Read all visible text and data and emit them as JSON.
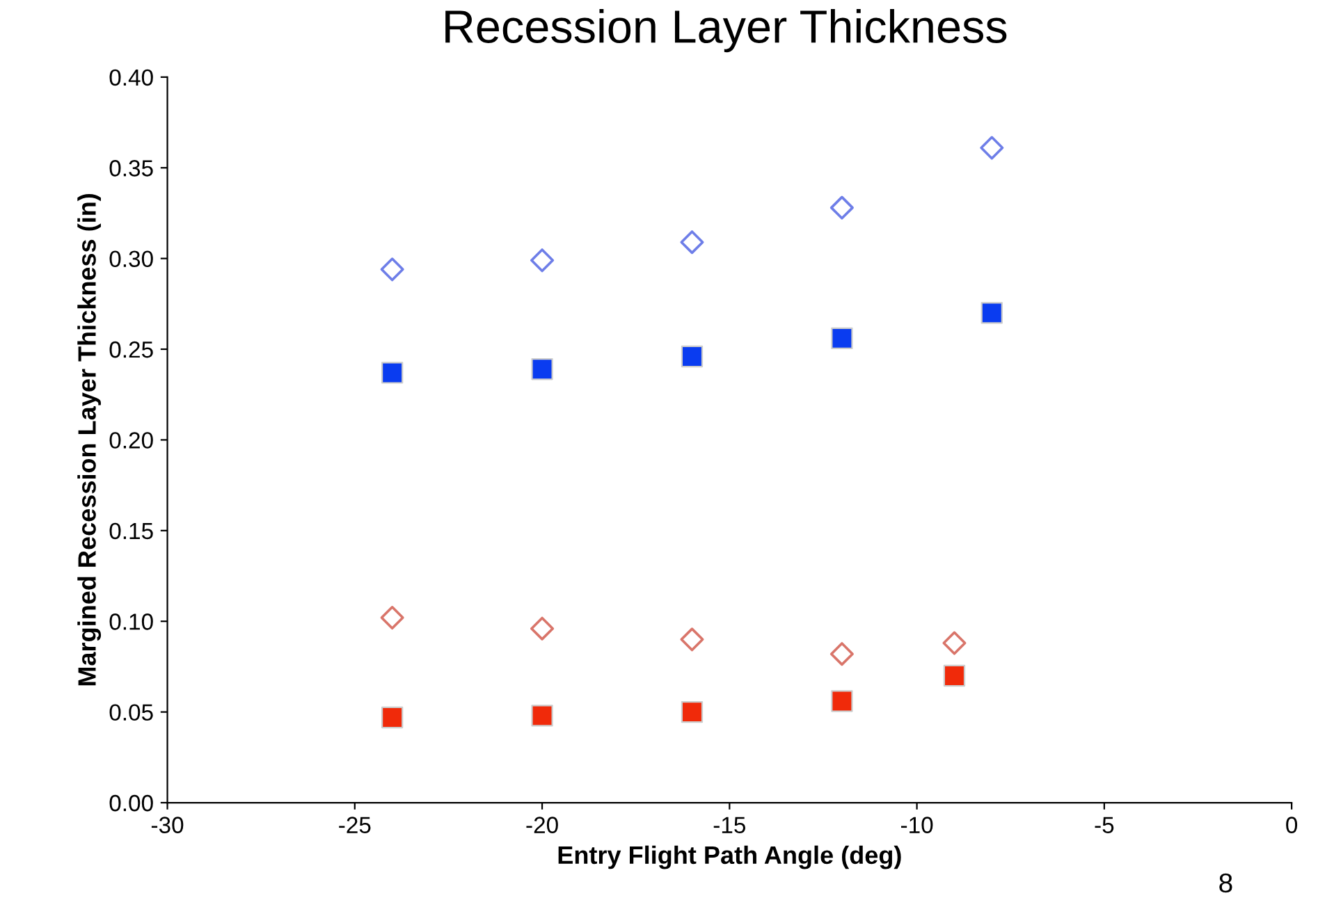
{
  "chart_data": {
    "type": "scatter",
    "title": "Recession Layer Thickness",
    "xlabel": "Entry Flight Path Angle (deg)",
    "ylabel": "Margined Recession Layer Thickness (in)",
    "x": [
      -24,
      -20,
      -16,
      -12,
      -8
    ],
    "series": [
      {
        "color": "#6e7ee8",
        "marker": "diamond",
        "values": [
          0.294,
          0.299,
          0.309,
          0.328,
          0.361
        ]
      },
      {
        "color": "#0a3cf0",
        "marker": "square",
        "values": [
          0.237,
          0.239,
          0.246,
          0.256,
          0.27
        ]
      },
      {
        "color": "#d9756a",
        "marker": "diamond",
        "x": [
          -24,
          -20,
          -16,
          -12,
          -9
        ],
        "values": [
          0.102,
          0.096,
          0.09,
          0.082,
          0.088
        ]
      },
      {
        "color": "#f02a0a",
        "marker": "square",
        "x": [
          -24,
          -20,
          -16,
          -12,
          -9
        ],
        "values": [
          0.047,
          0.048,
          0.05,
          0.056,
          0.07
        ]
      }
    ],
    "xlim": [
      -30,
      0
    ],
    "xticks": [
      -30,
      -25,
      -20,
      -15,
      -10,
      -5,
      0
    ],
    "ylim": [
      0,
      0.4
    ],
    "yticks": [
      {
        "value": 0,
        "label": "0.00"
      },
      {
        "value": 0.05,
        "label": "0.05"
      },
      {
        "value": 0.1,
        "label": "0.10"
      },
      {
        "value": 0.15,
        "label": "0.15"
      },
      {
        "value": 0.2,
        "label": "0.20"
      },
      {
        "value": 0.25,
        "label": "0.25"
      },
      {
        "value": 0.3,
        "label": "0.30"
      },
      {
        "value": 0.35,
        "label": "0.35"
      },
      {
        "value": 0.4,
        "label": "0.40"
      }
    ],
    "grid": false,
    "annotations": [
      "8"
    ]
  }
}
